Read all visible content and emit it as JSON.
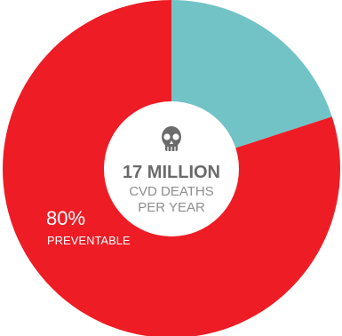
{
  "chart_data": {
    "type": "pie",
    "slices": [
      {
        "label": "80%",
        "sublabel": "PREVENTABLE",
        "value": 80,
        "color": "#ee1c25"
      },
      {
        "label": "",
        "value": 20,
        "color": "#72c3c6"
      }
    ],
    "center": {
      "icon": "skull-icon",
      "headline": "17 MILLION",
      "line2": "CVD DEATHS",
      "line3": "PER YEAR"
    }
  },
  "colors": {
    "hole": "#ffffff",
    "icon": "#6b6b6b",
    "headline": "#6a6a6a",
    "subtext": "#8e8e8e",
    "slice_label": "#ffffff"
  }
}
